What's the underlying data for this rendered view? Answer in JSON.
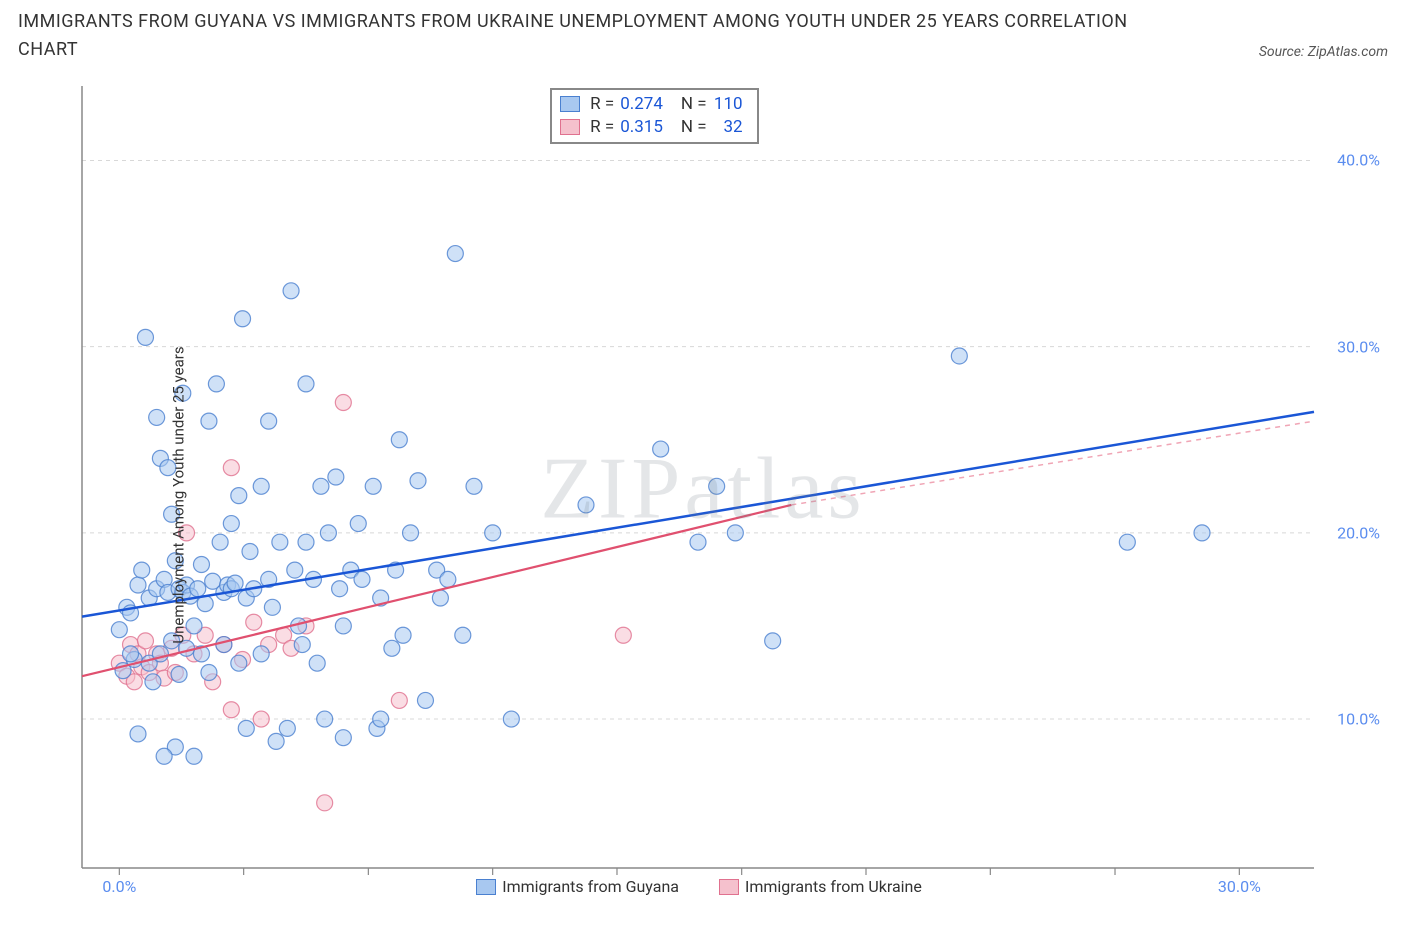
{
  "title": "IMMIGRANTS FROM GUYANA VS IMMIGRANTS FROM UKRAINE UNEMPLOYMENT AMONG YOUTH UNDER 25 YEARS CORRELATION CHART",
  "source_label": "Source:",
  "source_value": "ZipAtlas.com",
  "watermark": "ZIPatlas",
  "yaxis_label": "Unemployment Among Youth under 25 years",
  "legend_stats": {
    "series1": {
      "swatch_fill": "#a8c8f0",
      "swatch_stroke": "#4a80d0",
      "R": "0.274",
      "N": "110"
    },
    "series2": {
      "swatch_fill": "#f5c1cd",
      "swatch_stroke": "#e0718f",
      "R": "0.315",
      "N": "32"
    }
  },
  "bottom_legend": {
    "series1": {
      "label": "Immigrants from Guyana",
      "swatch_fill": "#a8c8f0",
      "swatch_stroke": "#4a80d0"
    },
    "series2": {
      "label": "Immigrants from Ukraine",
      "swatch_fill": "#f5c1cd",
      "swatch_stroke": "#e0718f"
    }
  },
  "chart": {
    "type": "scatter",
    "background": "#ffffff",
    "grid_color": "#d8d8d8",
    "axis_color": "#888888",
    "xlim": [
      -1,
      32
    ],
    "ylim": [
      2,
      44
    ],
    "ytick_values": [
      10,
      20,
      30,
      40
    ],
    "ytick_labels": [
      "10.0%",
      "20.0%",
      "30.0%",
      "40.0%"
    ],
    "xtick_values": [
      0,
      10,
      20,
      30
    ],
    "xtick_labels": [
      "0.0%",
      "",
      "",
      "30.0%"
    ],
    "xtick_minor": [
      0,
      3.33,
      6.67,
      10,
      13.33,
      16.67,
      20,
      23.33,
      26.67,
      30
    ],
    "marker_radius": 8,
    "marker_opacity": 0.55,
    "series": [
      {
        "name": "Immigrants from Guyana",
        "fill": "#a8c8f0",
        "stroke": "#4a80d0",
        "trend": {
          "x1": -1,
          "y1": 15.5,
          "x2": 32,
          "y2": 26.5,
          "color": "#1a56d6",
          "width": 2.5
        },
        "points": [
          [
            0.0,
            14.8
          ],
          [
            0.1,
            12.6
          ],
          [
            0.2,
            16.0
          ],
          [
            0.3,
            15.7
          ],
          [
            0.4,
            13.2
          ],
          [
            0.5,
            17.2
          ],
          [
            0.5,
            9.2
          ],
          [
            0.6,
            18.0
          ],
          [
            0.7,
            30.5
          ],
          [
            0.8,
            13.0
          ],
          [
            0.8,
            16.5
          ],
          [
            0.9,
            12.0
          ],
          [
            1.0,
            26.2
          ],
          [
            1.0,
            17.0
          ],
          [
            1.1,
            13.5
          ],
          [
            1.1,
            24.0
          ],
          [
            1.2,
            17.5
          ],
          [
            1.3,
            23.5
          ],
          [
            1.3,
            16.8
          ],
          [
            1.4,
            21.0
          ],
          [
            1.4,
            14.2
          ],
          [
            1.5,
            18.5
          ],
          [
            1.5,
            8.5
          ],
          [
            1.6,
            12.4
          ],
          [
            1.6,
            17.0
          ],
          [
            1.7,
            16.8
          ],
          [
            1.7,
            27.5
          ],
          [
            1.8,
            13.8
          ],
          [
            1.8,
            17.2
          ],
          [
            1.9,
            16.6
          ],
          [
            2.0,
            8.0
          ],
          [
            2.0,
            15.0
          ],
          [
            2.1,
            17.0
          ],
          [
            2.2,
            13.5
          ],
          [
            2.2,
            18.3
          ],
          [
            2.3,
            16.2
          ],
          [
            2.4,
            26.0
          ],
          [
            2.4,
            12.5
          ],
          [
            2.5,
            17.4
          ],
          [
            2.6,
            28.0
          ],
          [
            2.7,
            19.5
          ],
          [
            2.8,
            14.0
          ],
          [
            2.8,
            16.8
          ],
          [
            2.9,
            17.2
          ],
          [
            3.0,
            17.0
          ],
          [
            3.0,
            20.5
          ],
          [
            3.1,
            17.3
          ],
          [
            3.2,
            22.0
          ],
          [
            3.2,
            13.0
          ],
          [
            3.3,
            31.5
          ],
          [
            3.4,
            9.5
          ],
          [
            3.4,
            16.5
          ],
          [
            3.5,
            19.0
          ],
          [
            3.6,
            17.0
          ],
          [
            3.8,
            22.5
          ],
          [
            3.8,
            13.5
          ],
          [
            4.0,
            26.0
          ],
          [
            4.0,
            17.5
          ],
          [
            4.1,
            16.0
          ],
          [
            4.2,
            8.8
          ],
          [
            4.3,
            19.5
          ],
          [
            4.5,
            9.5
          ],
          [
            4.6,
            33.0
          ],
          [
            4.7,
            18.0
          ],
          [
            4.8,
            15.0
          ],
          [
            4.9,
            14.0
          ],
          [
            5.0,
            28.0
          ],
          [
            5.0,
            19.5
          ],
          [
            5.2,
            17.5
          ],
          [
            5.3,
            13.0
          ],
          [
            5.4,
            22.5
          ],
          [
            5.5,
            10.0
          ],
          [
            5.6,
            20.0
          ],
          [
            5.8,
            23.0
          ],
          [
            5.9,
            17.0
          ],
          [
            6.0,
            9.0
          ],
          [
            6.0,
            15.0
          ],
          [
            6.2,
            18.0
          ],
          [
            6.4,
            20.5
          ],
          [
            6.5,
            17.5
          ],
          [
            6.8,
            22.5
          ],
          [
            6.9,
            9.5
          ],
          [
            7.0,
            16.5
          ],
          [
            7.0,
            10.0
          ],
          [
            7.3,
            13.8
          ],
          [
            7.4,
            18.0
          ],
          [
            7.5,
            25.0
          ],
          [
            7.6,
            14.5
          ],
          [
            7.8,
            20.0
          ],
          [
            8.0,
            22.8
          ],
          [
            8.2,
            11.0
          ],
          [
            8.5,
            18.0
          ],
          [
            8.6,
            16.5
          ],
          [
            8.8,
            17.5
          ],
          [
            9.0,
            35.0
          ],
          [
            9.2,
            14.5
          ],
          [
            9.5,
            22.5
          ],
          [
            10.0,
            20.0
          ],
          [
            10.5,
            10.0
          ],
          [
            12.5,
            21.5
          ],
          [
            14.5,
            24.5
          ],
          [
            15.5,
            19.5
          ],
          [
            16.0,
            22.5
          ],
          [
            16.5,
            20.0
          ],
          [
            17.5,
            14.2
          ],
          [
            22.5,
            29.5
          ],
          [
            27.0,
            19.5
          ],
          [
            29.0,
            20.0
          ],
          [
            0.3,
            13.5
          ],
          [
            1.2,
            8.0
          ]
        ]
      },
      {
        "name": "Immigrants from Ukraine",
        "fill": "#f5c1cd",
        "stroke": "#e0718f",
        "trend": {
          "x1": -1,
          "y1": 12.3,
          "x2": 18,
          "y2": 21.5,
          "color": "#e0506f",
          "width": 2.2
        },
        "trend_dash": {
          "x1": 18,
          "y1": 21.5,
          "x2": 32,
          "y2": 26.0,
          "color": "#f0a5b5",
          "width": 1.5
        },
        "points": [
          [
            0.0,
            13.0
          ],
          [
            0.2,
            12.3
          ],
          [
            0.3,
            14.0
          ],
          [
            0.4,
            12.0
          ],
          [
            0.5,
            13.5
          ],
          [
            0.6,
            12.8
          ],
          [
            0.7,
            14.2
          ],
          [
            0.8,
            12.5
          ],
          [
            1.0,
            13.5
          ],
          [
            1.1,
            13.0
          ],
          [
            1.2,
            12.2
          ],
          [
            1.4,
            13.8
          ],
          [
            1.5,
            12.5
          ],
          [
            1.7,
            14.5
          ],
          [
            1.8,
            20.0
          ],
          [
            2.0,
            13.5
          ],
          [
            2.3,
            14.5
          ],
          [
            2.5,
            12.0
          ],
          [
            2.8,
            14.0
          ],
          [
            3.0,
            23.5
          ],
          [
            3.0,
            10.5
          ],
          [
            3.3,
            13.2
          ],
          [
            3.6,
            15.2
          ],
          [
            3.8,
            10.0
          ],
          [
            4.0,
            14.0
          ],
          [
            4.4,
            14.5
          ],
          [
            4.6,
            13.8
          ],
          [
            5.0,
            15.0
          ],
          [
            5.5,
            5.5
          ],
          [
            6.0,
            27.0
          ],
          [
            7.5,
            11.0
          ],
          [
            13.5,
            14.5
          ]
        ]
      }
    ]
  }
}
